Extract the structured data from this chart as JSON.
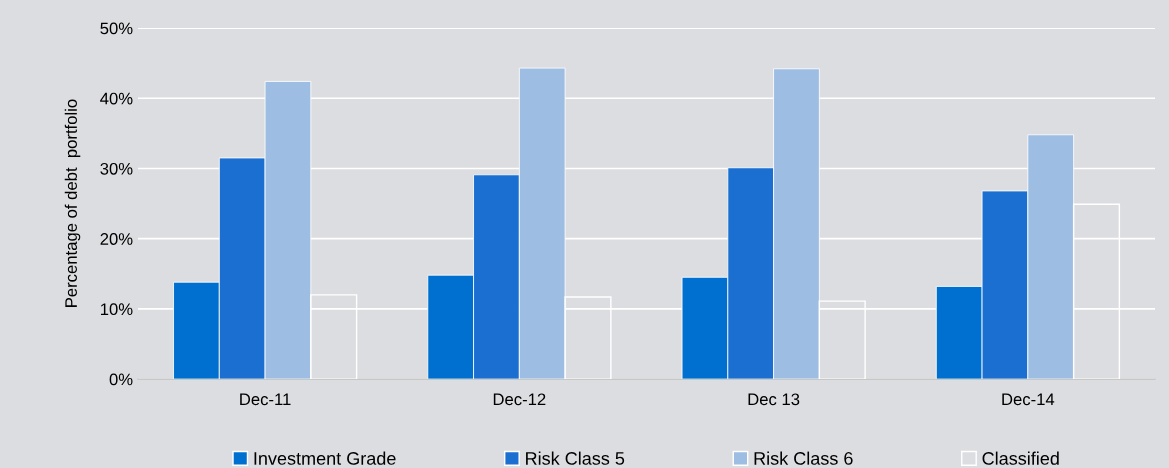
{
  "chart_data": {
    "type": "bar",
    "ylabel": "Percentage of debt  portfolio",
    "categories": [
      "Dec-11",
      "Dec-12",
      "Dec 13",
      "Dec-14"
    ],
    "series": [
      {
        "name": "Investment Grade",
        "color": "#0070d0",
        "values": [
          13.8,
          14.8,
          14.5,
          13.2
        ]
      },
      {
        "name": "Risk Class 5",
        "color": "#1a6fd0",
        "values": [
          31.5,
          29.1,
          30.1,
          26.8
        ]
      },
      {
        "name": "Risk Class 6",
        "color": "#9dbde3",
        "values": [
          42.4,
          44.3,
          44.2,
          34.8
        ]
      },
      {
        "name": "Classified",
        "color": "#ffffff",
        "values": [
          12.0,
          11.7,
          11.1,
          24.9
        ]
      }
    ],
    "ylim": [
      0,
      50
    ],
    "yticks": [
      {
        "value": 0,
        "label": "0%"
      },
      {
        "value": 10,
        "label": "10%"
      },
      {
        "value": 20,
        "label": "20%"
      },
      {
        "value": 30,
        "label": "30%"
      },
      {
        "value": 40,
        "label": "40%"
      },
      {
        "value": 50,
        "label": "50%"
      }
    ],
    "grid": "y",
    "legend": "bottom"
  }
}
